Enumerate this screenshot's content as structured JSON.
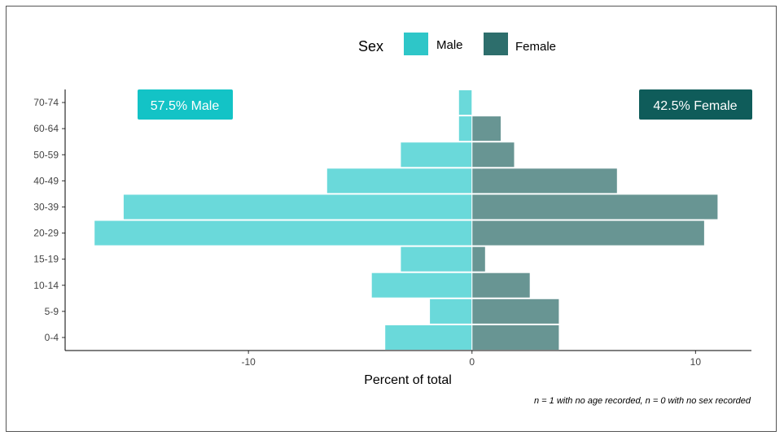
{
  "chart_data": {
    "type": "bar",
    "orientation": "horizontal",
    "categories": [
      "0-4",
      "5-9",
      "10-14",
      "15-19",
      "20-29",
      "30-39",
      "40-49",
      "50-59",
      "60-64",
      "70-74"
    ],
    "series": [
      {
        "name": "Male",
        "values": [
          -3.9,
          -1.9,
          -4.5,
          -3.2,
          -16.9,
          -15.6,
          -6.5,
          -3.2,
          -0.6,
          -0.6
        ]
      },
      {
        "name": "Female",
        "values": [
          3.9,
          3.9,
          2.6,
          0.6,
          10.4,
          11.0,
          6.5,
          1.9,
          1.3,
          0
        ]
      }
    ],
    "xlabel": "Percent of total",
    "ylabel": "",
    "xlim": [
      -18.2,
      12.5
    ],
    "xticks": [
      -10,
      0,
      10
    ],
    "xtick_labels": [
      "-10",
      "0",
      "10"
    ],
    "legend": {
      "title": "Sex",
      "position": "top",
      "items": [
        "Male",
        "Female"
      ]
    },
    "annotations": {
      "male_label": "57.5% Male",
      "female_label": "42.5% Female"
    },
    "caption": "n = 1 with no age recorded, n = 0 with no sex recorded",
    "grid": false,
    "colors": {
      "male_bar": "#6ad9da",
      "female_bar": "#689593",
      "male_legend": "#2ec6c8",
      "female_legend": "#2d6e6c",
      "male_label_bg": "#13c3c6",
      "female_label_bg": "#0f5c5a"
    }
  }
}
